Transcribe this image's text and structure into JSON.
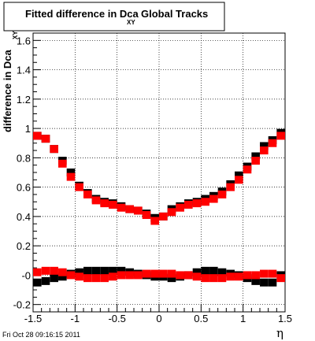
{
  "chart_data": {
    "type": "scatter",
    "title": {
      "prefix": "Fitted difference in Dca",
      "subscript": "XY",
      "suffix": "Global Tracks"
    },
    "xlabel": "η",
    "ylabel": {
      "text": "difference in Dca",
      "subscript": "XY"
    },
    "xlim": [
      -1.5,
      1.5
    ],
    "ylim": [
      -0.25,
      1.65
    ],
    "x_ticks": [
      {
        "value": -1.5,
        "label": "-1.5"
      },
      {
        "value": -1.0,
        "label": "-1"
      },
      {
        "value": -0.5,
        "label": "-0.5"
      },
      {
        "value": 0.0,
        "label": "0"
      },
      {
        "value": 0.5,
        "label": "0.5"
      },
      {
        "value": 1.0,
        "label": "1"
      },
      {
        "value": 1.5,
        "label": "1.5"
      }
    ],
    "y_ticks": [
      {
        "value": -0.2,
        "label": "-0.2"
      },
      {
        "value": 0.0,
        "label": "-0"
      },
      {
        "value": 0.2,
        "label": "0.2"
      },
      {
        "value": 0.4,
        "label": "0.4"
      },
      {
        "value": 0.6,
        "label": "0.6"
      },
      {
        "value": 0.8,
        "label": "0.8"
      },
      {
        "value": 1.0,
        "label": "1"
      },
      {
        "value": 1.2,
        "label": "1.2"
      },
      {
        "value": 1.4,
        "label": "1.4"
      },
      {
        "value": 1.6,
        "label": "1.6"
      }
    ],
    "grid": true,
    "timestamp": "Fri Oct 28 09:16:15 2011",
    "series": [
      {
        "color": "#000000",
        "x": [
          -1.45,
          -1.35,
          -1.25,
          -1.15,
          -1.05,
          -0.95,
          -0.85,
          -0.75,
          -0.65,
          -0.55,
          -0.45,
          -0.35,
          -0.25,
          -0.15,
          -0.05,
          0.05,
          0.15,
          0.25,
          0.35,
          0.45,
          0.55,
          0.65,
          0.75,
          0.85,
          0.95,
          1.05,
          1.15,
          1.25,
          1.35,
          1.45
        ],
        "y": [
          0.95,
          0.93,
          0.86,
          0.78,
          0.7,
          0.61,
          0.56,
          0.52,
          0.5,
          0.49,
          0.47,
          0.45,
          0.44,
          0.42,
          0.39,
          0.4,
          0.45,
          0.47,
          0.49,
          0.5,
          0.52,
          0.54,
          0.57,
          0.62,
          0.68,
          0.74,
          0.81,
          0.88,
          0.92,
          0.97
        ]
      },
      {
        "color": "#ff0000",
        "x": [
          -1.45,
          -1.35,
          -1.25,
          -1.15,
          -1.05,
          -0.95,
          -0.85,
          -0.75,
          -0.65,
          -0.55,
          -0.45,
          -0.35,
          -0.25,
          -0.15,
          -0.05,
          0.05,
          0.15,
          0.25,
          0.35,
          0.45,
          0.55,
          0.65,
          0.75,
          0.85,
          0.95,
          1.05,
          1.15,
          1.25,
          1.35,
          1.45
        ],
        "y": [
          0.95,
          0.93,
          0.86,
          0.76,
          0.67,
          0.6,
          0.55,
          0.51,
          0.49,
          0.48,
          0.46,
          0.45,
          0.44,
          0.41,
          0.37,
          0.4,
          0.43,
          0.46,
          0.48,
          0.49,
          0.5,
          0.52,
          0.55,
          0.6,
          0.65,
          0.72,
          0.78,
          0.85,
          0.9,
          0.95
        ]
      },
      {
        "color": "#000000",
        "x": [
          -1.45,
          -1.35,
          -1.25,
          -1.15,
          -1.05,
          -0.95,
          -0.85,
          -0.75,
          -0.65,
          -0.55,
          -0.45,
          -0.35,
          -0.25,
          -0.15,
          -0.05,
          0.05,
          0.15,
          0.25,
          0.35,
          0.45,
          0.55,
          0.65,
          0.75,
          0.85,
          0.95,
          1.05,
          1.15,
          1.25,
          1.35,
          1.45
        ],
        "y": [
          -0.05,
          -0.04,
          -0.02,
          -0.01,
          0.01,
          0.02,
          0.03,
          0.03,
          0.03,
          0.03,
          0.03,
          0.02,
          0.01,
          0.0,
          -0.01,
          -0.01,
          -0.02,
          -0.01,
          0.0,
          0.02,
          0.03,
          0.03,
          0.02,
          0.01,
          0.0,
          -0.02,
          -0.04,
          -0.05,
          -0.05,
          0.0
        ]
      },
      {
        "color": "#ff0000",
        "x": [
          -1.45,
          -1.35,
          -1.25,
          -1.15,
          -1.05,
          -0.95,
          -0.85,
          -0.75,
          -0.65,
          -0.55,
          -0.45,
          -0.35,
          -0.25,
          -0.15,
          -0.05,
          0.05,
          0.15,
          0.25,
          0.35,
          0.45,
          0.55,
          0.65,
          0.75,
          0.85,
          0.95,
          1.05,
          1.15,
          1.25,
          1.35,
          1.45
        ],
        "y": [
          0.02,
          0.03,
          0.03,
          0.02,
          0.0,
          -0.01,
          -0.02,
          -0.02,
          -0.02,
          -0.01,
          0.0,
          0.0,
          0.0,
          0.01,
          0.01,
          0.01,
          0.01,
          0.0,
          0.0,
          -0.01,
          -0.02,
          -0.02,
          -0.02,
          -0.01,
          -0.01,
          0.0,
          0.0,
          0.01,
          0.01,
          -0.02
        ]
      }
    ]
  }
}
